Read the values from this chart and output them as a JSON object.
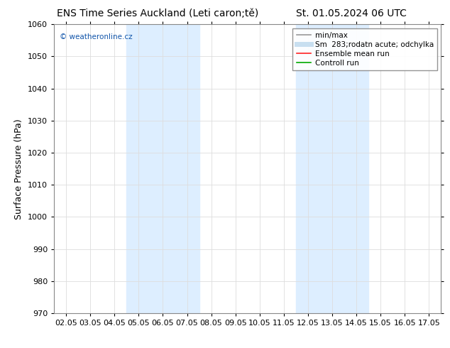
{
  "title_left": "ENS Time Series Auckland (Leti caron;tě)",
  "title_right": "St. 01.05.2024 06 UTC",
  "ylabel": "Surface Pressure (hPa)",
  "ylim": [
    970,
    1060
  ],
  "yticks": [
    970,
    980,
    990,
    1000,
    1010,
    1020,
    1030,
    1040,
    1050,
    1060
  ],
  "xtick_labels": [
    "02.05",
    "03.05",
    "04.05",
    "05.05",
    "06.05",
    "07.05",
    "08.05",
    "09.05",
    "10.05",
    "11.05",
    "12.05",
    "13.05",
    "14.05",
    "15.05",
    "16.05",
    "17.05"
  ],
  "shaded_regions": [
    {
      "xmin": 3,
      "xmax": 5,
      "color": "#ddeeff"
    },
    {
      "xmin": 10,
      "xmax": 12,
      "color": "#ddeeff"
    }
  ],
  "watermark_text": "© weatheronline.cz",
  "watermark_color": "#1155aa",
  "legend_entries": [
    {
      "label": "min/max",
      "color": "#999999",
      "lw": 1.2,
      "linestyle": "-"
    },
    {
      "label": "Sm  283;rodatn acute; odchylka",
      "color": "#c8dff0",
      "lw": 5,
      "linestyle": "-"
    },
    {
      "label": "Ensemble mean run",
      "color": "#ff2222",
      "lw": 1.2,
      "linestyle": "-"
    },
    {
      "label": "Controll run",
      "color": "#00aa00",
      "lw": 1.2,
      "linestyle": "-"
    }
  ],
  "background_color": "#ffffff",
  "spine_color": "#888888",
  "grid_color": "#dddddd",
  "title_fontsize": 10,
  "axis_label_fontsize": 9,
  "tick_fontsize": 8,
  "legend_fontsize": 7.5
}
